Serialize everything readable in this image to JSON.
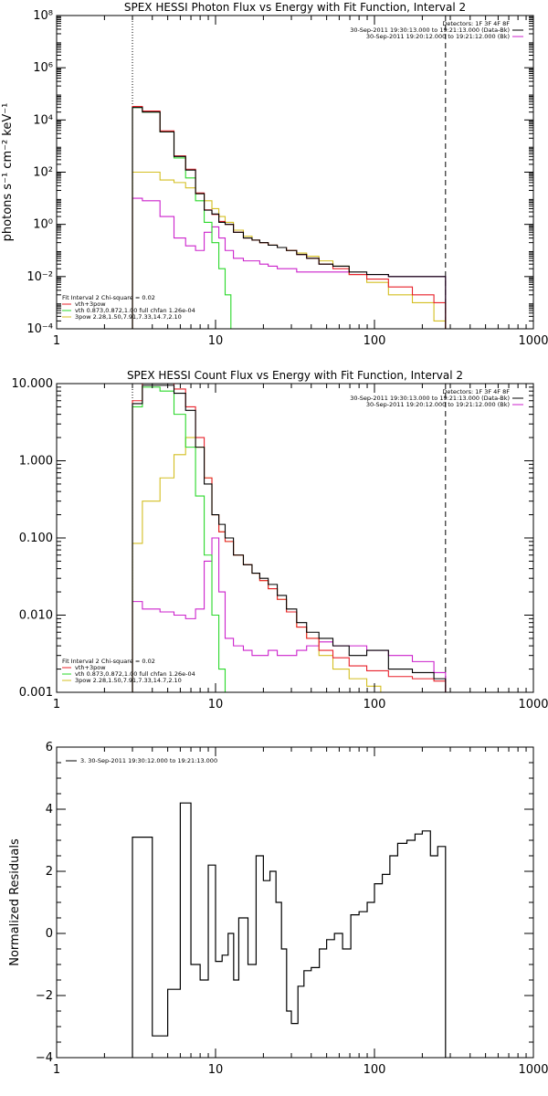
{
  "colors": {
    "black": "#000000",
    "red": "#e8202a",
    "green": "#2ad82a",
    "magenta": "#cc22cc",
    "yellow": "#d4bf22"
  },
  "chart_data": [
    {
      "type": "line",
      "title": "SPEX HESSI Photon Flux vs Energy with Fit Function, Interval 2",
      "xlabel": "",
      "ylabel": "photons s⁻¹ cm⁻² keV⁻¹",
      "xscale": "log",
      "yscale": "log",
      "xlim": [
        1,
        1000
      ],
      "ylim": [
        0.0001,
        100000000
      ],
      "x_ticks": [
        "1",
        "10",
        "100",
        "1000"
      ],
      "y_ticks": [
        "10⁻⁴",
        "10⁻²",
        "10⁰",
        "10²",
        "10⁴",
        "10⁶",
        "10⁸"
      ],
      "vlines": [
        3,
        280
      ],
      "legend_top": [
        "Detectors: 1F 3F 4F 8F",
        "30-Sep-2011 19:30:13.000 to 19:21:13.000 (Data-Bk)",
        "30-Sep-2011 19:20:12.000 to 19:21:12.000 (Bk)"
      ],
      "legend_top_colors": [
        "",
        "#000000",
        "#cc22cc"
      ],
      "legend_bottom": [
        "Fit Interval 2   Chi-square = 0.02",
        "vth+3pow",
        "vth 0.873,0.872,1.00  full chfan 1.26e-04",
        "3pow 2.28,1.50,7.91,7.33,14.7,2.10"
      ],
      "legend_bottom_colors": [
        "",
        "#e8202a",
        "#2ad82a",
        "#d4bf22"
      ],
      "series": [
        {
          "name": "30-Sep-2011 19:30:13.000 to 19:21:13.000 (Data-Bk)",
          "color": "#000000",
          "x": [
            3,
            4,
            5,
            6,
            7,
            8,
            9,
            10,
            11,
            12,
            14,
            16,
            18,
            20,
            23,
            26,
            30,
            35,
            40,
            50,
            60,
            80,
            100,
            150,
            200,
            280
          ],
          "y": [
            30000,
            20000,
            3500,
            400,
            120,
            15,
            3.5,
            2.5,
            1.2,
            1.0,
            0.5,
            0.3,
            0.25,
            0.2,
            0.16,
            0.13,
            0.1,
            0.07,
            0.05,
            0.03,
            0.025,
            0.015,
            0.012,
            0.01,
            0.01,
            0.01
          ]
        },
        {
          "name": "vth+3pow",
          "color": "#e8202a",
          "x": [
            3,
            4,
            5,
            6,
            7,
            8,
            9,
            10,
            11,
            12,
            14,
            16,
            18,
            20,
            23,
            26,
            30,
            35,
            40,
            50,
            60,
            80,
            100,
            150,
            200,
            280
          ],
          "y": [
            33000,
            22000,
            3800,
            420,
            130,
            16,
            3.6,
            2.4,
            1.3,
            1.0,
            0.5,
            0.3,
            0.25,
            0.2,
            0.16,
            0.13,
            0.1,
            0.07,
            0.05,
            0.03,
            0.02,
            0.012,
            0.008,
            0.004,
            0.002,
            0.001
          ]
        },
        {
          "name": "vth 0.873,0.872,1.00  full chfan 1.26e-04",
          "color": "#2ad82a",
          "x": [
            3,
            4,
            5,
            6,
            7,
            8,
            9,
            10,
            11,
            12,
            13
          ],
          "y": [
            30000,
            20000,
            3500,
            350,
            60,
            8,
            1.2,
            0.2,
            0.02,
            0.002,
            0.0001
          ]
        },
        {
          "name": "3pow 2.28,1.50,7.91,7.33,14.7,2.10",
          "color": "#d4bf22",
          "x": [
            3,
            4,
            5,
            6,
            7,
            8,
            9,
            10,
            11,
            12,
            14,
            16,
            18,
            20,
            23,
            26,
            30,
            35,
            40,
            50,
            60,
            80,
            100,
            150,
            200,
            280
          ],
          "y": [
            100,
            100,
            50,
            40,
            25,
            15,
            8,
            4,
            2,
            1.2,
            0.6,
            0.35,
            0.25,
            0.2,
            0.16,
            0.13,
            0.1,
            0.08,
            0.06,
            0.04,
            0.025,
            0.012,
            0.006,
            0.002,
            0.001,
            0.0002
          ]
        },
        {
          "name": "30-Sep-2011 19:20:12.000 to 19:21:12.000 (Bk)",
          "color": "#cc22cc",
          "x": [
            3,
            4,
            5,
            6,
            7,
            8,
            9,
            10,
            11,
            12,
            14,
            16,
            18,
            20,
            23,
            26,
            30,
            35,
            40,
            50,
            60,
            80,
            100,
            150,
            200,
            280
          ],
          "y": [
            10,
            8,
            2,
            0.3,
            0.15,
            0.1,
            0.5,
            0.8,
            0.3,
            0.1,
            0.05,
            0.04,
            0.04,
            0.03,
            0.025,
            0.02,
            0.02,
            0.015,
            0.015,
            0.015,
            0.015,
            0.012,
            0.012,
            0.01,
            0.01,
            0.01
          ]
        }
      ]
    },
    {
      "type": "line",
      "title": "SPEX HESSI Count Flux vs Energy with Fit Function, Interval 2",
      "xlabel": "",
      "ylabel": "",
      "xscale": "log",
      "yscale": "log",
      "xlim": [
        1,
        1000
      ],
      "ylim": [
        0.001,
        10
      ],
      "x_ticks": [
        "1",
        "10",
        "100",
        "1000"
      ],
      "y_ticks": [
        "0.001",
        "0.010",
        "0.100",
        "1.000",
        "10.000"
      ],
      "vlines": [
        3,
        280
      ],
      "legend_top": [
        "Detectors: 1F 3F 4F 8F",
        "30-Sep-2011 19:30:13.000 to 19:21:13.000 (Data-Bk)",
        "30-Sep-2011 19:20:12.000 to 19:21:12.000 (Bk)"
      ],
      "legend_top_colors": [
        "",
        "#000000",
        "#cc22cc"
      ],
      "legend_bottom": [
        "Fit Interval 2   Chi-square = 0.02",
        "vth+3pow",
        "vth 0.873,0.872,1.00  full chfan 1.26e-04",
        "3pow 2.28,1.50,7.91,7.33,14.7,2.10"
      ],
      "legend_bottom_colors": [
        "",
        "#e8202a",
        "#2ad82a",
        "#d4bf22"
      ],
      "series": [
        {
          "name": "30-Sep-2011 19:30:13.000 to 19:21:13.000 (Data-Bk)",
          "color": "#000000",
          "x": [
            3,
            4,
            5,
            6,
            7,
            8,
            9,
            10,
            11,
            12,
            14,
            16,
            18,
            20,
            23,
            26,
            30,
            35,
            40,
            50,
            60,
            80,
            100,
            150,
            200,
            280
          ],
          "y": [
            5.5,
            9.5,
            9.5,
            7.5,
            4.5,
            1.5,
            0.5,
            0.2,
            0.15,
            0.1,
            0.06,
            0.045,
            0.035,
            0.03,
            0.025,
            0.018,
            0.012,
            0.008,
            0.006,
            0.005,
            0.004,
            0.003,
            0.0035,
            0.002,
            0.0018,
            0.0015
          ]
        },
        {
          "name": "vth+3pow",
          "color": "#e8202a",
          "x": [
            3,
            4,
            5,
            6,
            7,
            8,
            9,
            10,
            11,
            12,
            14,
            16,
            18,
            20,
            23,
            26,
            30,
            35,
            40,
            50,
            60,
            80,
            100,
            150,
            200,
            280
          ],
          "y": [
            6,
            10,
            10,
            8.5,
            5,
            2,
            0.6,
            0.2,
            0.12,
            0.09,
            0.06,
            0.045,
            0.035,
            0.028,
            0.022,
            0.016,
            0.011,
            0.007,
            0.005,
            0.0035,
            0.0028,
            0.0022,
            0.0019,
            0.0016,
            0.0015,
            0.0014
          ]
        },
        {
          "name": "vth 0.873,0.872,1.00  full chfan 1.26e-04",
          "color": "#2ad82a",
          "x": [
            3,
            4,
            5,
            6,
            7,
            8,
            9,
            10,
            11,
            12
          ],
          "y": [
            5,
            9,
            8,
            4,
            1.5,
            0.35,
            0.06,
            0.01,
            0.002,
            0.001
          ]
        },
        {
          "name": "3pow 2.28,1.50,7.91,7.33,14.7,2.10",
          "color": "#d4bf22",
          "x": [
            3,
            4,
            5,
            6,
            7,
            8,
            9,
            10,
            11,
            12,
            14,
            16,
            18,
            20,
            23,
            26,
            30,
            35,
            40,
            50,
            60,
            80,
            100,
            120
          ],
          "y": [
            0.085,
            0.3,
            0.6,
            1.2,
            2.0,
            1.5,
            0.6,
            0.2,
            0.12,
            0.09,
            0.06,
            0.045,
            0.035,
            0.028,
            0.022,
            0.016,
            0.011,
            0.007,
            0.005,
            0.003,
            0.002,
            0.0015,
            0.0012,
            0.001
          ]
        },
        {
          "name": "30-Sep-2011 19:20:12.000 to 19:21:12.000 (Bk)",
          "color": "#cc22cc",
          "x": [
            3,
            4,
            5,
            6,
            7,
            8,
            9,
            10,
            11,
            12,
            14,
            16,
            18,
            20,
            23,
            26,
            30,
            35,
            40,
            50,
            60,
            80,
            100,
            150,
            200,
            280
          ],
          "y": [
            0.015,
            0.012,
            0.011,
            0.01,
            0.009,
            0.012,
            0.05,
            0.1,
            0.02,
            0.005,
            0.004,
            0.0035,
            0.003,
            0.003,
            0.0035,
            0.003,
            0.003,
            0.0035,
            0.004,
            0.0045,
            0.004,
            0.004,
            0.0035,
            0.003,
            0.0025,
            0.0018
          ]
        }
      ]
    },
    {
      "type": "line",
      "title": "",
      "xlabel": "",
      "ylabel": "Normalized Residuals",
      "xscale": "log",
      "yscale": "linear",
      "xlim": [
        1,
        1000
      ],
      "ylim": [
        -4,
        6
      ],
      "x_ticks": [
        "1",
        "10",
        "100",
        "1000"
      ],
      "y_ticks": [
        "−4",
        "−2",
        "0",
        "2",
        "4",
        "6"
      ],
      "legend": "3. 30-Sep-2011 19:30:12.000 to 19:21:13.000",
      "series": [
        {
          "name": "3. 30-Sep-2011 19:30:12.000 to 19:21:13.000",
          "color": "#000000",
          "edges": [
            3,
            4,
            5,
            6,
            7,
            8,
            9,
            10,
            11,
            12,
            13,
            14,
            16,
            18,
            20,
            22,
            24,
            26,
            28,
            30,
            33,
            36,
            40,
            45,
            50,
            56,
            63,
            71,
            80,
            90,
            100,
            112,
            125,
            140,
            160,
            180,
            200,
            225,
            250,
            280
          ],
          "values": [
            3.1,
            -3.3,
            -1.8,
            4.2,
            -1.0,
            -1.5,
            2.2,
            -0.9,
            -0.7,
            0.0,
            -1.5,
            0.5,
            -1.0,
            2.5,
            1.7,
            2.0,
            1.0,
            -0.5,
            -2.5,
            -2.9,
            -1.7,
            -1.2,
            -1.1,
            -0.5,
            -0.2,
            0.0,
            -0.5,
            0.6,
            0.7,
            1.0,
            1.6,
            1.9,
            2.5,
            2.9,
            3.0,
            3.2,
            3.3,
            2.5,
            2.8
          ]
        }
      ]
    }
  ]
}
